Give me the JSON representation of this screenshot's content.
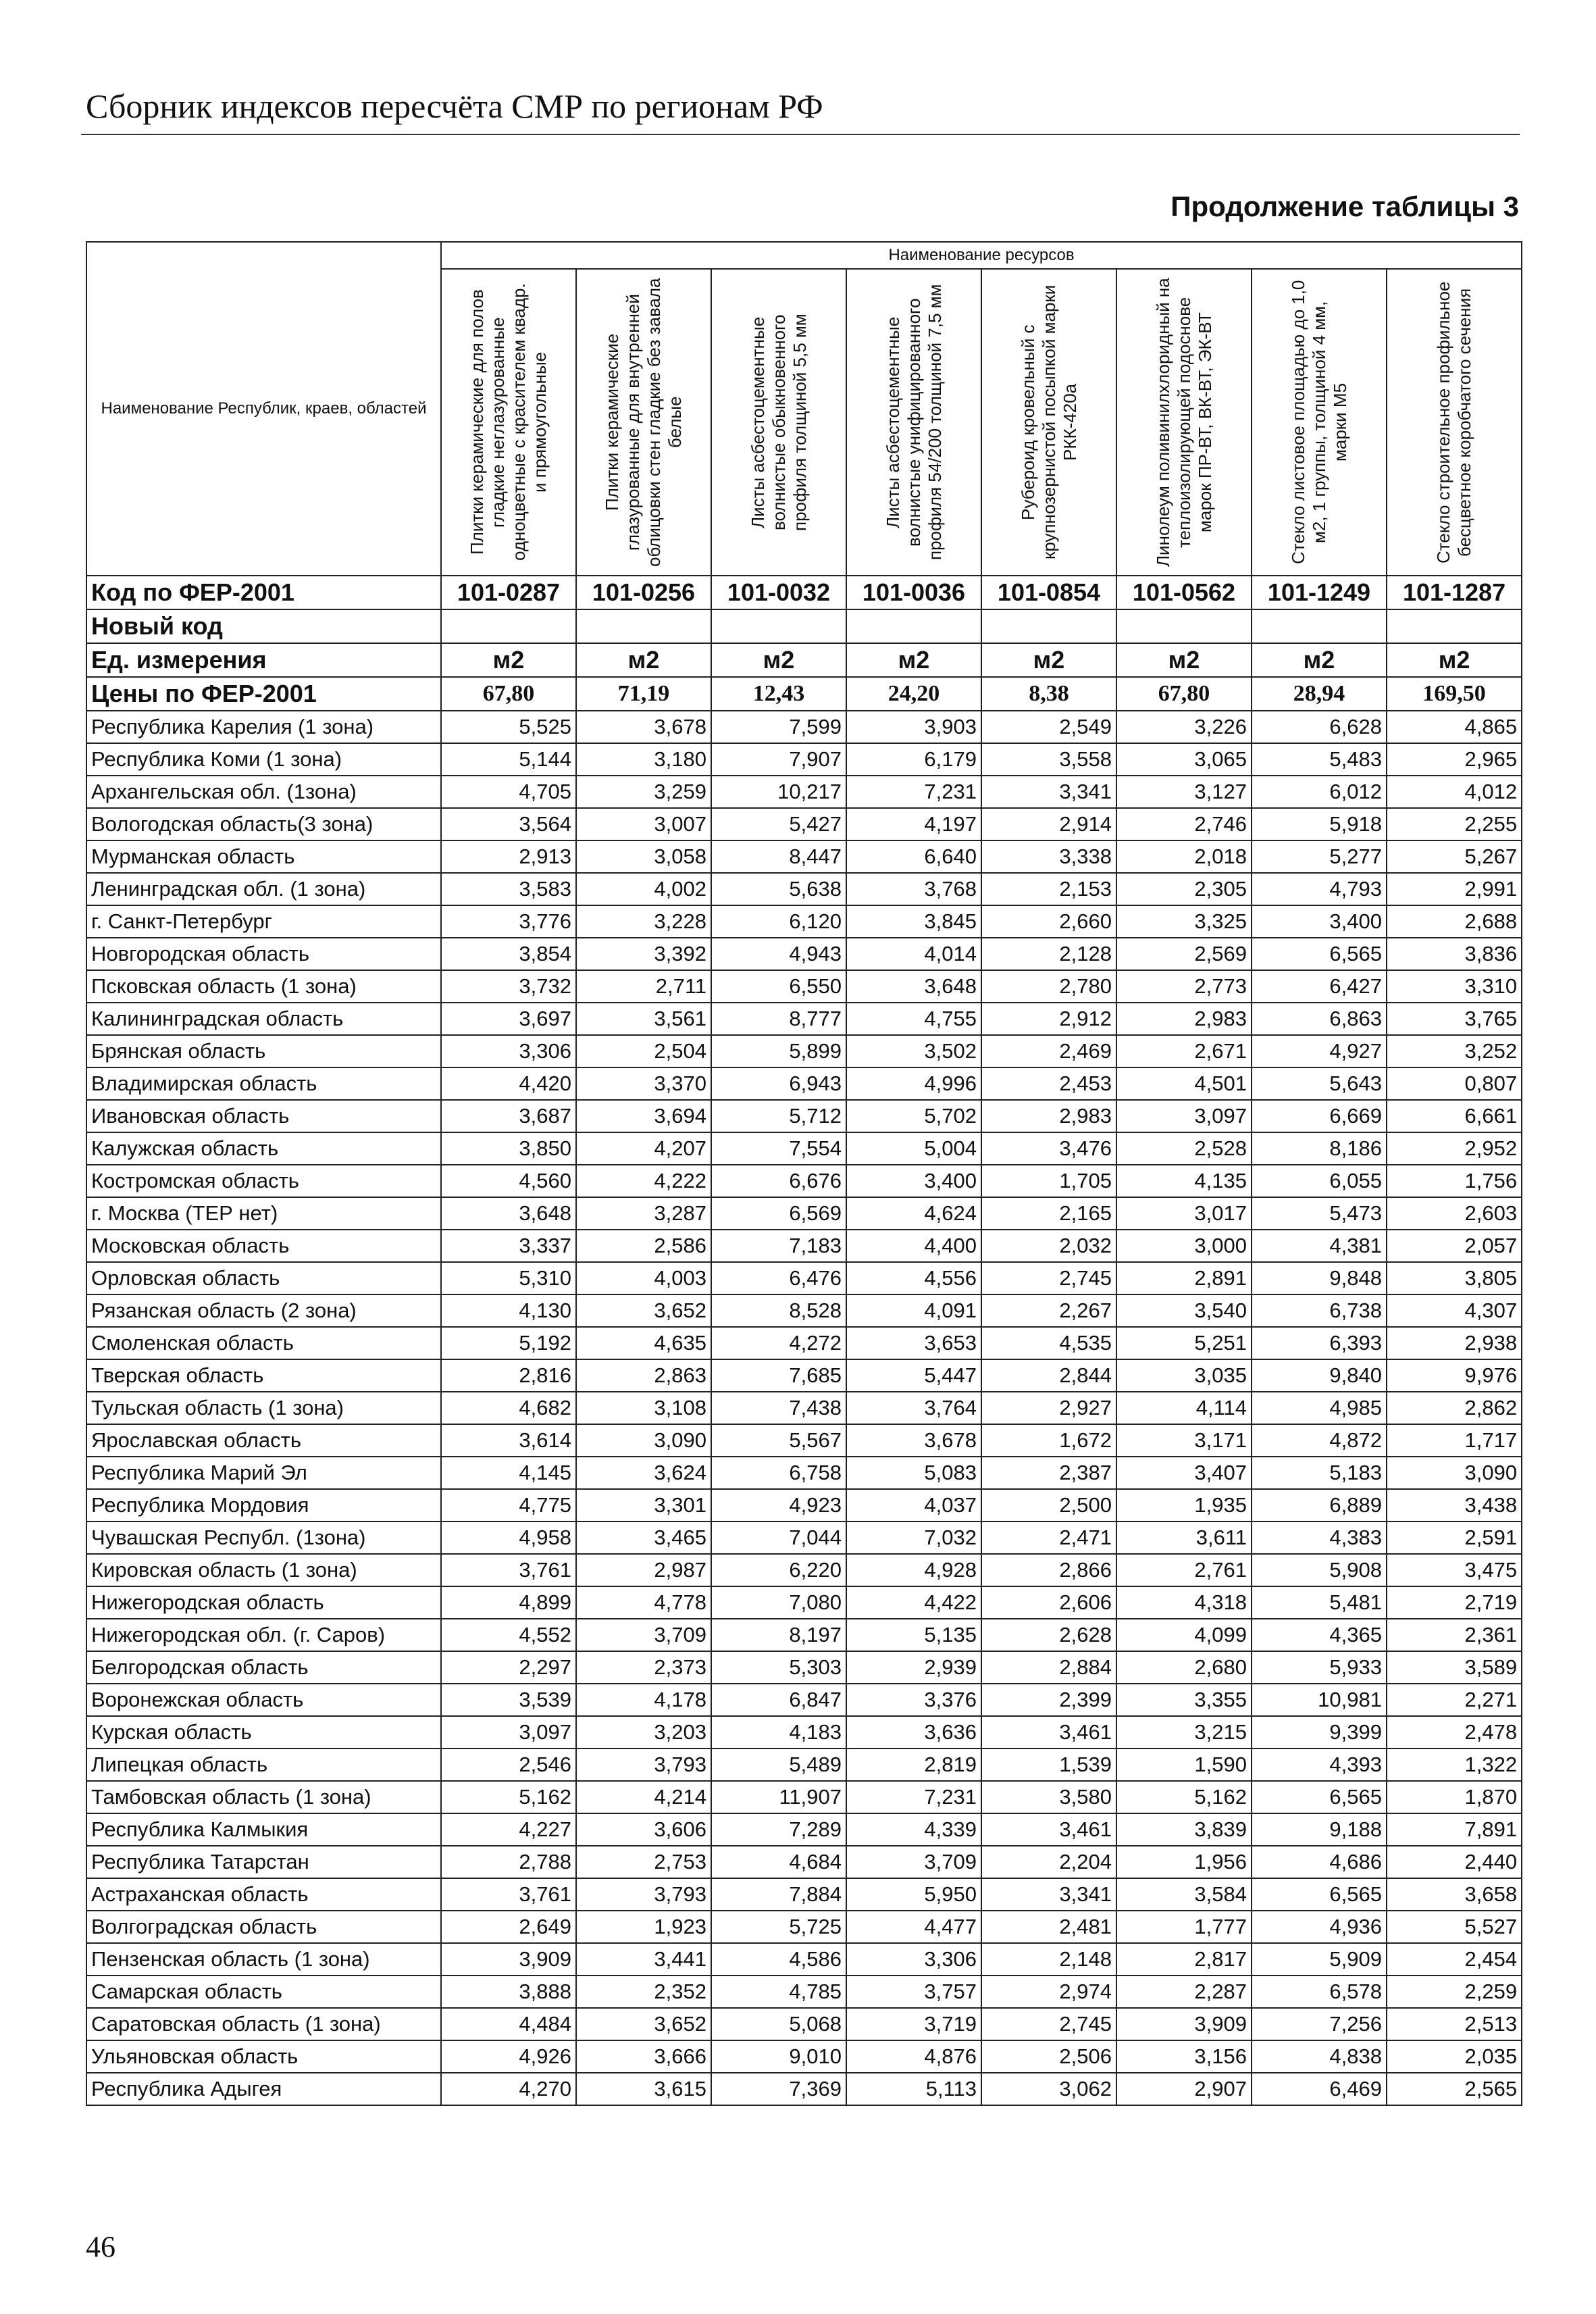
{
  "header": {
    "title": "Сборник индексов пересчёта СМР по регионам РФ",
    "continuation": "Продолжение таблицы 3"
  },
  "table": {
    "region_header": "Наименование Республик, краев, областей",
    "resources_header": "Наименование ресурсов",
    "columns": [
      "Плитки керамические для полов гладкие неглазурованные одноцветные с красителем квадр. и прямоугольные",
      "Плитки керамические глазурованные для внутренней облицовки стен гладкие без завала белые",
      "Листы асбестоцементные волнистые обыкновенного профиля толщиной 5,5 мм",
      "Листы асбестоцементные волнистые унифицированного профиля 54/200 толщиной 7,5 мм",
      "Рубероид кровельный с крупнозернистой посыпкой марки РКК-420а",
      "Линолеум поливинилхлоридный на теплоизолирующей подоснове марок ПР-ВТ, ВК-ВТ, ЭК-ВТ",
      "Стекло листовое площадью до 1,0 м2, 1 группы, толщиной 4 мм, марки М5",
      "Стекло строительное профильное бесцветное коробчатого сечения"
    ],
    "code_label": "Код по ФЕР-2001",
    "codes": [
      "101-0287",
      "101-0256",
      "101-0032",
      "101-0036",
      "101-0854",
      "101-0562",
      "101-1249",
      "101-1287"
    ],
    "new_code_label": "Новый код",
    "unit_label": "Ед. измерения",
    "units": [
      "м2",
      "м2",
      "м2",
      "м2",
      "м2",
      "м2",
      "м2",
      "м2"
    ],
    "price_label": "Цены по ФЕР-2001",
    "prices": [
      "67,80",
      "71,19",
      "12,43",
      "24,20",
      "8,38",
      "67,80",
      "28,94",
      "169,50"
    ],
    "rows": [
      {
        "name": "Республика Карелия (1 зона)",
        "values": [
          "5,525",
          "3,678",
          "7,599",
          "3,903",
          "2,549",
          "3,226",
          "6,628",
          "4,865"
        ]
      },
      {
        "name": "Республика Коми (1 зона)",
        "values": [
          "5,144",
          "3,180",
          "7,907",
          "6,179",
          "3,558",
          "3,065",
          "5,483",
          "2,965"
        ]
      },
      {
        "name": "Архангельская обл. (1зона)",
        "values": [
          "4,705",
          "3,259",
          "10,217",
          "7,231",
          "3,341",
          "3,127",
          "6,012",
          "4,012"
        ]
      },
      {
        "name": "Вологодская область(3 зона)",
        "values": [
          "3,564",
          "3,007",
          "5,427",
          "4,197",
          "2,914",
          "2,746",
          "5,918",
          "2,255"
        ]
      },
      {
        "name": "Мурманская область",
        "values": [
          "2,913",
          "3,058",
          "8,447",
          "6,640",
          "3,338",
          "2,018",
          "5,277",
          "5,267"
        ]
      },
      {
        "name": "Ленинградская обл. (1 зона)",
        "values": [
          "3,583",
          "4,002",
          "5,638",
          "3,768",
          "2,153",
          "2,305",
          "4,793",
          "2,991"
        ]
      },
      {
        "name": "г. Санкт-Петербург",
        "values": [
          "3,776",
          "3,228",
          "6,120",
          "3,845",
          "2,660",
          "3,325",
          "3,400",
          "2,688"
        ]
      },
      {
        "name": "Новгородская область",
        "values": [
          "3,854",
          "3,392",
          "4,943",
          "4,014",
          "2,128",
          "2,569",
          "6,565",
          "3,836"
        ]
      },
      {
        "name": "Псковская область (1 зона)",
        "values": [
          "3,732",
          "2,711",
          "6,550",
          "3,648",
          "2,780",
          "2,773",
          "6,427",
          "3,310"
        ]
      },
      {
        "name": "Калининградская область",
        "values": [
          "3,697",
          "3,561",
          "8,777",
          "4,755",
          "2,912",
          "2,983",
          "6,863",
          "3,765"
        ]
      },
      {
        "name": "Брянская область",
        "values": [
          "3,306",
          "2,504",
          "5,899",
          "3,502",
          "2,469",
          "2,671",
          "4,927",
          "3,252"
        ]
      },
      {
        "name": "Владимирская область",
        "values": [
          "4,420",
          "3,370",
          "6,943",
          "4,996",
          "2,453",
          "4,501",
          "5,643",
          "0,807"
        ]
      },
      {
        "name": "Ивановская область",
        "values": [
          "3,687",
          "3,694",
          "5,712",
          "5,702",
          "2,983",
          "3,097",
          "6,669",
          "6,661"
        ]
      },
      {
        "name": "Калужская область",
        "values": [
          "3,850",
          "4,207",
          "7,554",
          "5,004",
          "3,476",
          "2,528",
          "8,186",
          "2,952"
        ]
      },
      {
        "name": "Костромская область",
        "values": [
          "4,560",
          "4,222",
          "6,676",
          "3,400",
          "1,705",
          "4,135",
          "6,055",
          "1,756"
        ]
      },
      {
        "name": "г. Москва (ТЕР нет)",
        "values": [
          "3,648",
          "3,287",
          "6,569",
          "4,624",
          "2,165",
          "3,017",
          "5,473",
          "2,603"
        ]
      },
      {
        "name": "Московская  область",
        "values": [
          "3,337",
          "2,586",
          "7,183",
          "4,400",
          "2,032",
          "3,000",
          "4,381",
          "2,057"
        ]
      },
      {
        "name": "Орловская область",
        "values": [
          "5,310",
          "4,003",
          "6,476",
          "4,556",
          "2,745",
          "2,891",
          "9,848",
          "3,805"
        ]
      },
      {
        "name": "Рязанская область (2 зона)",
        "values": [
          "4,130",
          "3,652",
          "8,528",
          "4,091",
          "2,267",
          "3,540",
          "6,738",
          "4,307"
        ]
      },
      {
        "name": "Смоленская область",
        "values": [
          "5,192",
          "4,635",
          "4,272",
          "3,653",
          "4,535",
          "5,251",
          "6,393",
          "2,938"
        ]
      },
      {
        "name": "Тверская область",
        "values": [
          "2,816",
          "2,863",
          "7,685",
          "5,447",
          "2,844",
          "3,035",
          "9,840",
          "9,976"
        ]
      },
      {
        "name": "Тульская область (1 зона)",
        "values": [
          "4,682",
          "3,108",
          "7,438",
          "3,764",
          "2,927",
          "4,114",
          "4,985",
          "2,862"
        ]
      },
      {
        "name": "Ярославская область",
        "values": [
          "3,614",
          "3,090",
          "5,567",
          "3,678",
          "1,672",
          "3,171",
          "4,872",
          "1,717"
        ]
      },
      {
        "name": "Республика Марий Эл",
        "values": [
          "4,145",
          "3,624",
          "6,758",
          "5,083",
          "2,387",
          "3,407",
          "5,183",
          "3,090"
        ]
      },
      {
        "name": "Республика Мордовия",
        "values": [
          "4,775",
          "3,301",
          "4,923",
          "4,037",
          "2,500",
          "1,935",
          "6,889",
          "3,438"
        ]
      },
      {
        "name": "Чувашская Республ. (1зона)",
        "values": [
          "4,958",
          "3,465",
          "7,044",
          "7,032",
          "2,471",
          "3,611",
          "4,383",
          "2,591"
        ]
      },
      {
        "name": "Кировская область (1 зона)",
        "values": [
          "3,761",
          "2,987",
          "6,220",
          "4,928",
          "2,866",
          "2,761",
          "5,908",
          "3,475"
        ]
      },
      {
        "name": "Нижегородская область",
        "values": [
          "4,899",
          "4,778",
          "7,080",
          "4,422",
          "2,606",
          "4,318",
          "5,481",
          "2,719"
        ]
      },
      {
        "name": "Нижегородская обл. (г. Саров)",
        "values": [
          "4,552",
          "3,709",
          "8,197",
          "5,135",
          "2,628",
          "4,099",
          "4,365",
          "2,361"
        ]
      },
      {
        "name": "Белгородская область",
        "values": [
          "2,297",
          "2,373",
          "5,303",
          "2,939",
          "2,884",
          "2,680",
          "5,933",
          "3,589"
        ]
      },
      {
        "name": "Воронежская область",
        "values": [
          "3,539",
          "4,178",
          "6,847",
          "3,376",
          "2,399",
          "3,355",
          "10,981",
          "2,271"
        ]
      },
      {
        "name": "Курская область",
        "values": [
          "3,097",
          "3,203",
          "4,183",
          "3,636",
          "3,461",
          "3,215",
          "9,399",
          "2,478"
        ]
      },
      {
        "name": "Липецкая область",
        "values": [
          "2,546",
          "3,793",
          "5,489",
          "2,819",
          "1,539",
          "1,590",
          "4,393",
          "1,322"
        ]
      },
      {
        "name": "Тамбовская область (1 зона)",
        "values": [
          "5,162",
          "4,214",
          "11,907",
          "7,231",
          "3,580",
          "5,162",
          "6,565",
          "1,870"
        ]
      },
      {
        "name": "Республика Калмыкия",
        "values": [
          "4,227",
          "3,606",
          "7,289",
          "4,339",
          "3,461",
          "3,839",
          "9,188",
          "7,891"
        ]
      },
      {
        "name": "Республика Татарстан",
        "values": [
          "2,788",
          "2,753",
          "4,684",
          "3,709",
          "2,204",
          "1,956",
          "4,686",
          "2,440"
        ]
      },
      {
        "name": "Астраханская область",
        "values": [
          "3,761",
          "3,793",
          "7,884",
          "5,950",
          "3,341",
          "3,584",
          "6,565",
          "3,658"
        ]
      },
      {
        "name": "Волгоградская область",
        "values": [
          "2,649",
          "1,923",
          "5,725",
          "4,477",
          "2,481",
          "1,777",
          "4,936",
          "5,527"
        ]
      },
      {
        "name": "Пензенская область (1 зона)",
        "values": [
          "3,909",
          "3,441",
          "4,586",
          "3,306",
          "2,148",
          "2,817",
          "5,909",
          "2,454"
        ]
      },
      {
        "name": "Самарская область",
        "values": [
          "3,888",
          "2,352",
          "4,785",
          "3,757",
          "2,974",
          "2,287",
          "6,578",
          "2,259"
        ]
      },
      {
        "name": "Саратовская область (1 зона)",
        "values": [
          "4,484",
          "3,652",
          "5,068",
          "3,719",
          "2,745",
          "3,909",
          "7,256",
          "2,513"
        ]
      },
      {
        "name": "Ульяновская область",
        "values": [
          "4,926",
          "3,666",
          "9,010",
          "4,876",
          "2,506",
          "3,156",
          "4,838",
          "2,035"
        ]
      },
      {
        "name": "Республика Адыгея",
        "values": [
          "4,270",
          "3,615",
          "7,369",
          "5,113",
          "3,062",
          "2,907",
          "6,469",
          "2,565"
        ]
      }
    ]
  },
  "page_number": "46"
}
